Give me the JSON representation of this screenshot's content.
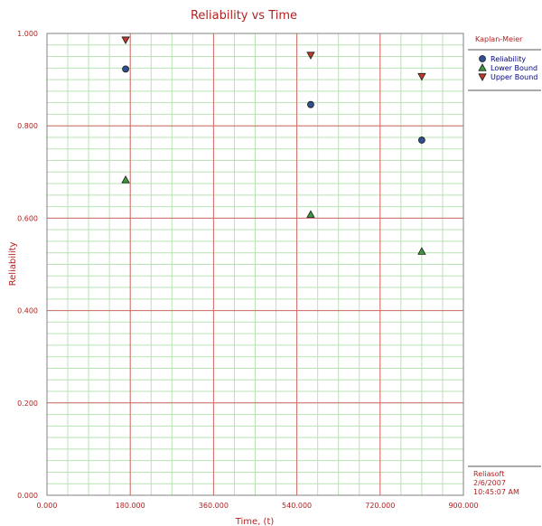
{
  "chart_data": {
    "type": "scatter",
    "title": "Reliability vs Time",
    "xlabel": "Time, (t)",
    "ylabel": "Reliability",
    "xlim": [
      0,
      900
    ],
    "ylim": [
      0,
      1
    ],
    "x_ticks": [
      "0.000",
      "180.000",
      "360.000",
      "540.000",
      "720.000",
      "900.000"
    ],
    "y_ticks": [
      "0.000",
      "0.200",
      "0.400",
      "0.600",
      "0.800",
      "1.000"
    ],
    "grid": true,
    "legend_position": "right",
    "legend_title": "Kaplan-Meier",
    "series": [
      {
        "name": "Reliability",
        "marker": "circle",
        "color": "#2f4f8f",
        "points": [
          {
            "x": 170,
            "y": 0.923
          },
          {
            "x": 570,
            "y": 0.846
          },
          {
            "x": 810,
            "y": 0.769
          }
        ]
      },
      {
        "name": "Lower Bound",
        "marker": "triangle-up",
        "color": "#3c9a3c",
        "points": [
          {
            "x": 170,
            "y": 0.683
          },
          {
            "x": 570,
            "y": 0.608
          },
          {
            "x": 810,
            "y": 0.528
          }
        ]
      },
      {
        "name": "Upper Bound",
        "marker": "triangle-down",
        "color": "#c0392b",
        "points": [
          {
            "x": 170,
            "y": 0.986
          },
          {
            "x": 570,
            "y": 0.953
          },
          {
            "x": 810,
            "y": 0.907
          }
        ]
      }
    ],
    "stamp": {
      "company": "Reliasoft",
      "date": "2/6/2007",
      "time": "10:45:07 AM"
    }
  }
}
